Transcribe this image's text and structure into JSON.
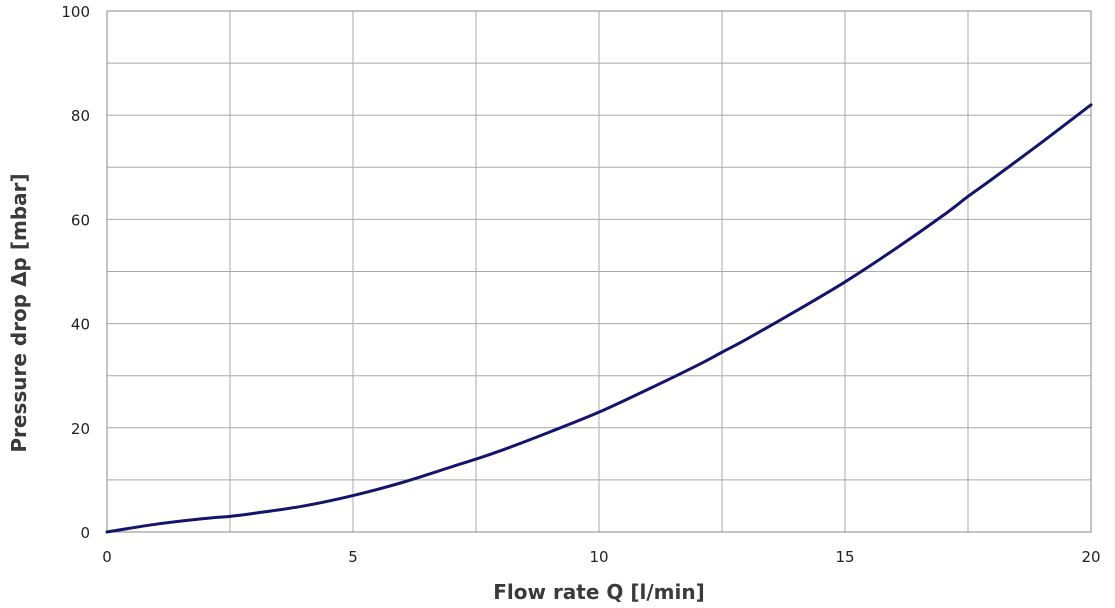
{
  "chart_data": {
    "type": "line",
    "title": "",
    "xlabel": "Flow rate Q [l/min]",
    "ylabel": "Pressure drop Δp [mbar]",
    "xlim": [
      0,
      20
    ],
    "ylim": [
      0,
      100
    ],
    "x_ticks": [
      0,
      5,
      10,
      15,
      20
    ],
    "y_ticks": [
      0,
      20,
      40,
      60,
      80,
      100
    ],
    "x_gridlines": [
      0,
      2.5,
      5,
      7.5,
      10,
      12.5,
      15,
      17.5,
      20
    ],
    "y_gridlines": [
      0,
      10,
      20,
      30,
      40,
      50,
      60,
      70,
      80,
      90,
      100
    ],
    "grid": true,
    "legend": "none",
    "series": [
      {
        "color": "#14146b",
        "x": [
          0,
          1,
          2,
          2.5,
          3,
          4,
          5,
          6,
          7,
          7.5,
          8,
          9,
          10,
          11,
          12,
          12.5,
          13,
          14,
          15,
          16,
          17,
          17.5,
          18,
          19,
          20
        ],
        "y": [
          0,
          1.5,
          2.6,
          3.0,
          3.6,
          5.0,
          7.0,
          9.5,
          12.5,
          14.0,
          15.6,
          19.2,
          23.0,
          27.4,
          32.0,
          34.5,
          37.0,
          42.4,
          48.0,
          54.2,
          60.8,
          64.4,
          67.8,
          74.8,
          82.0
        ]
      }
    ]
  }
}
